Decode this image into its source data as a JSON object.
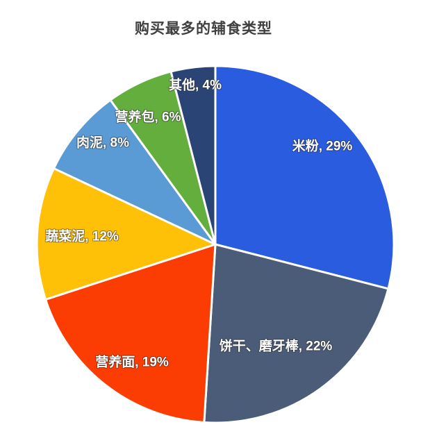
{
  "chart_data": {
    "type": "pie",
    "title": "购买最多的辅食类型",
    "unit": "%",
    "direction": "clockwise",
    "start_angle_deg": 0,
    "legend": "none",
    "label_format": "{name}, {value}%",
    "label_text_color": "#FFFFFF",
    "title_color": "#404040",
    "background_color": "#FFFFFF",
    "slice_border_color": "#FFFFFF",
    "slices": [
      {
        "name": "米粉",
        "value": 29,
        "label": "米粉, 29%",
        "color": "#2A5CE0"
      },
      {
        "name": "饼干、磨牙棒",
        "value": 22,
        "label": "饼干、磨牙棒, 22%",
        "color": "#4B5C78"
      },
      {
        "name": "营养面",
        "value": 19,
        "label": "营养面, 19%",
        "color": "#FB3D03"
      },
      {
        "name": "蔬菜泥",
        "value": 12,
        "label": "蔬菜泥, 12%",
        "color": "#FFC008"
      },
      {
        "name": "肉泥",
        "value": 8,
        "label": "肉泥, 8%",
        "color": "#5B9BD5"
      },
      {
        "name": "营养包",
        "value": 6,
        "label": "营养包, 6%",
        "color": "#64AE3E"
      },
      {
        "name": "其他",
        "value": 4,
        "label": "其他, 4%",
        "color": "#2A4476"
      }
    ]
  }
}
